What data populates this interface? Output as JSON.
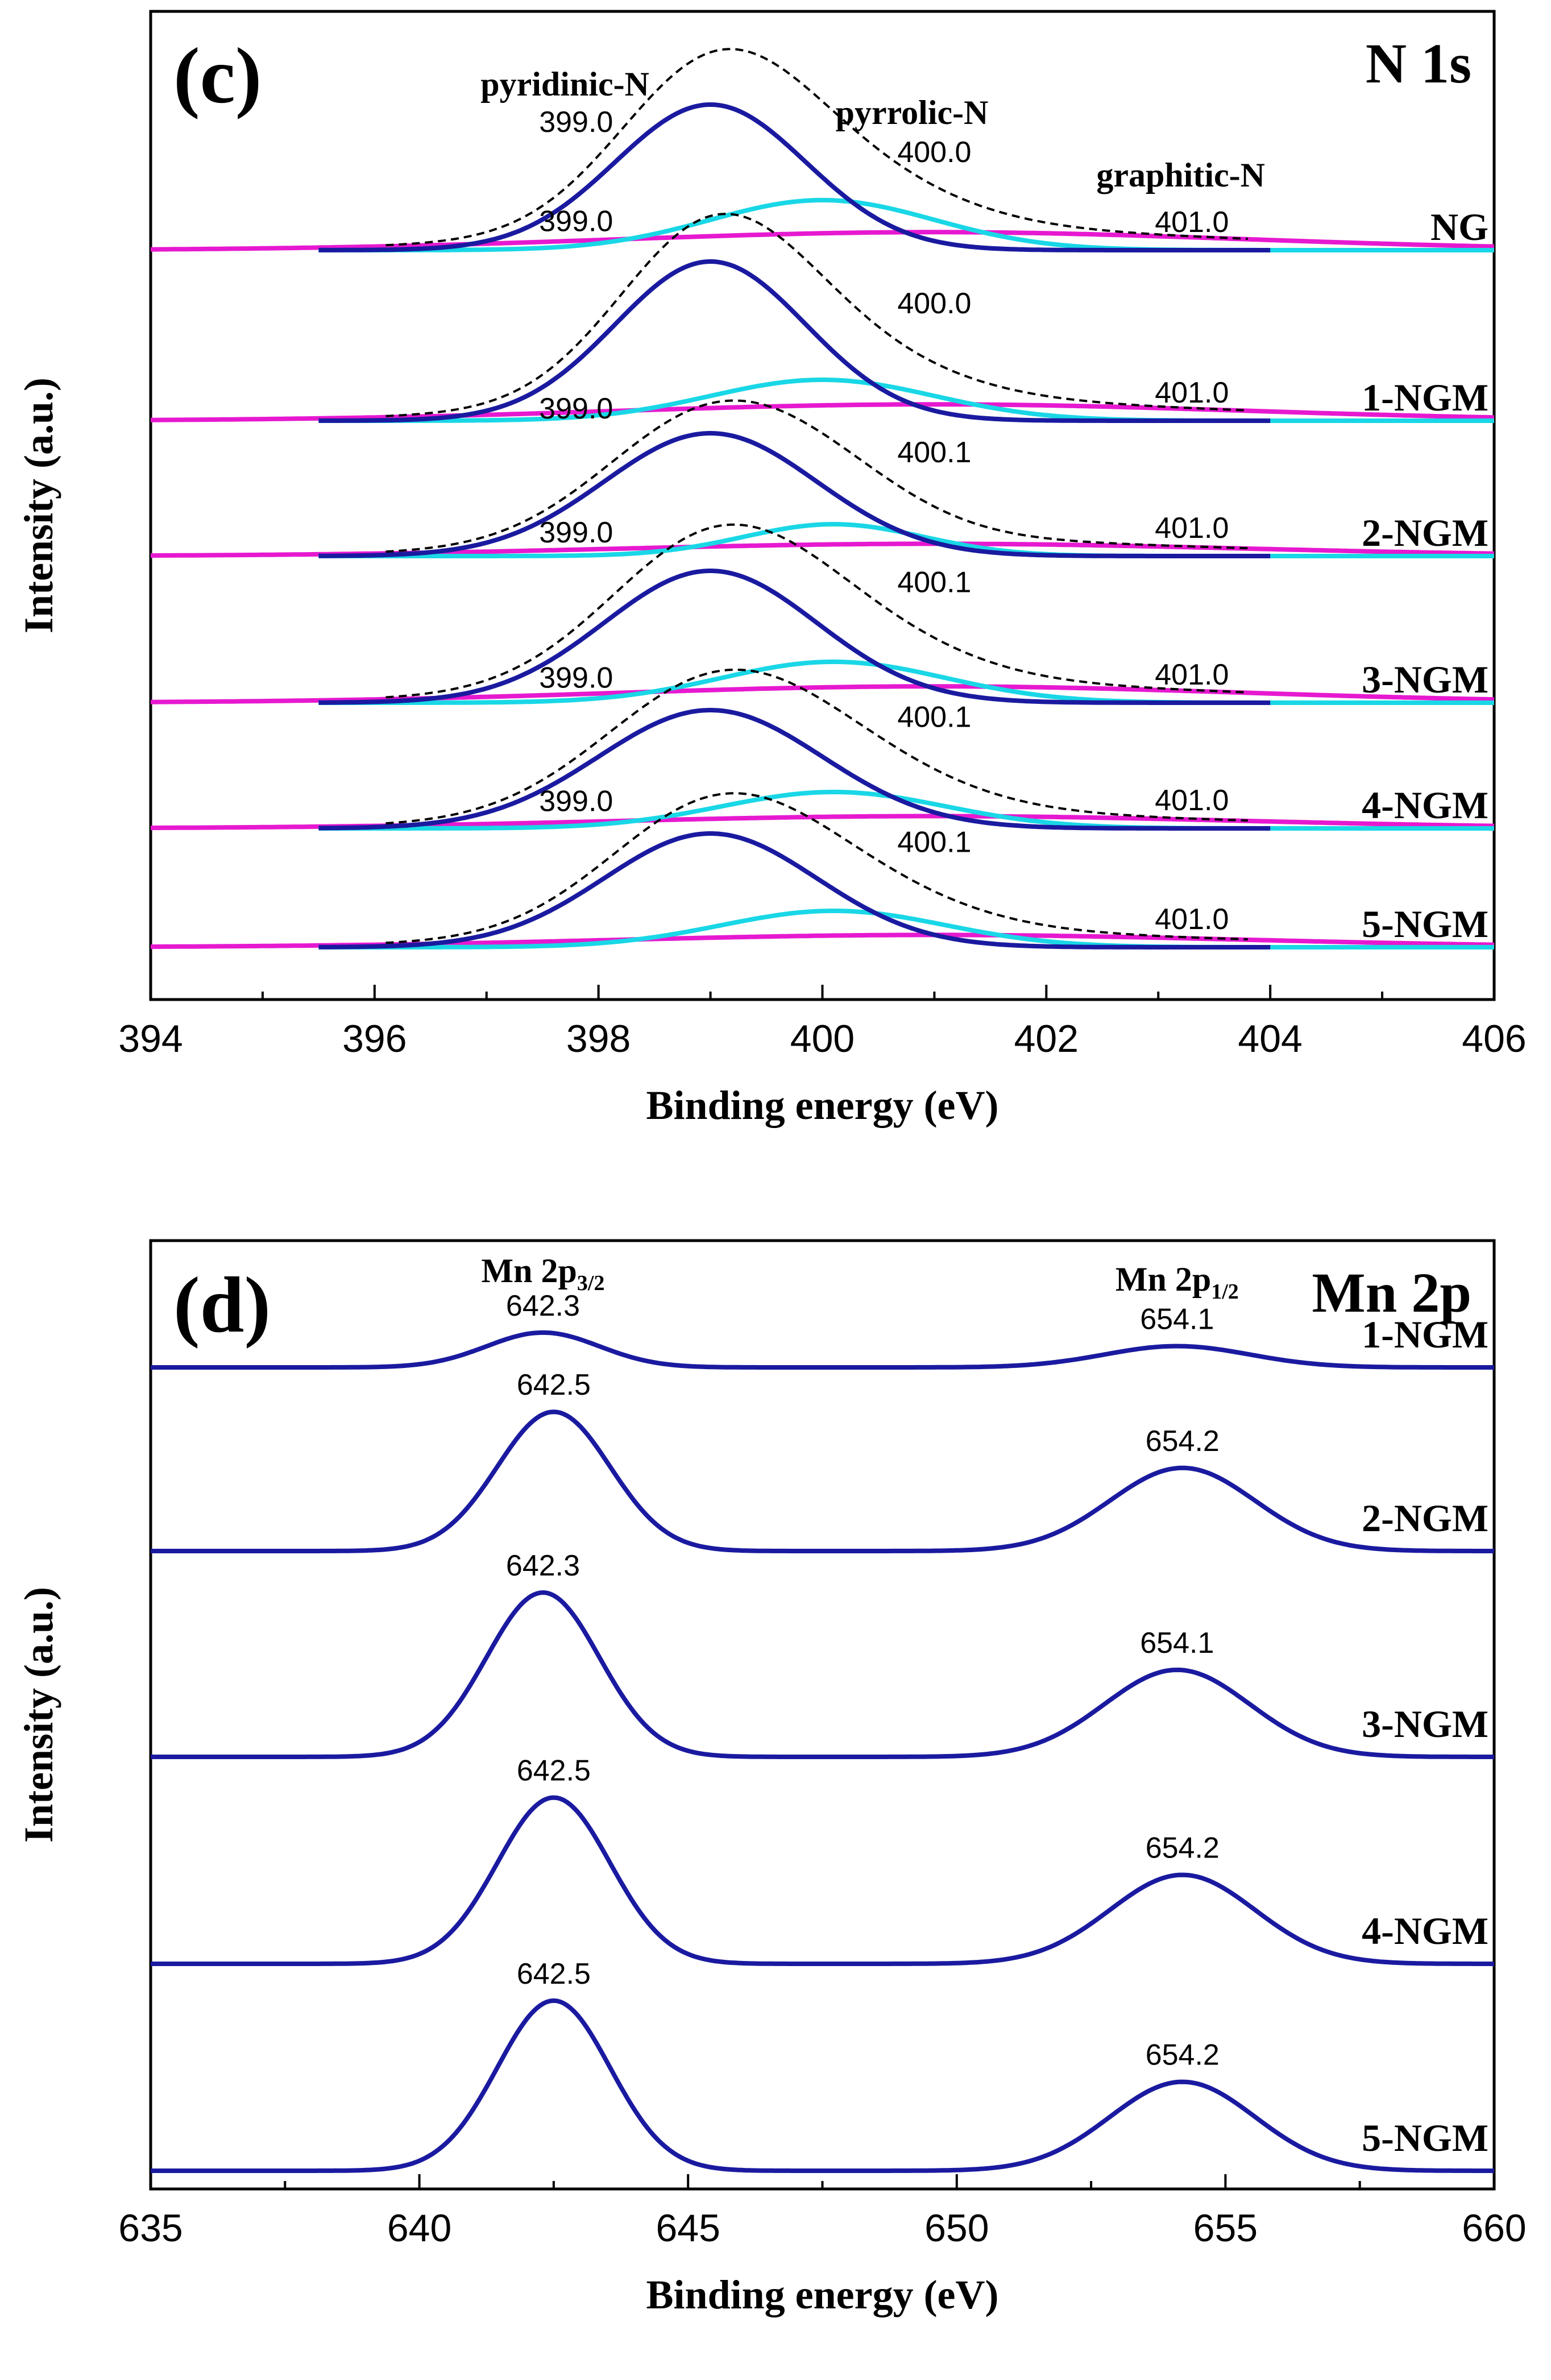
{
  "chart_data": [
    {
      "id": "c",
      "type": "line",
      "panel_label": "(c)",
      "title": "N 1s",
      "xlabel": "Binding energy (eV)",
      "ylabel": "Intensity (a.u.)",
      "xlim": [
        394,
        406
      ],
      "xticks": [
        394,
        396,
        398,
        400,
        402,
        404,
        406
      ],
      "xtick_labels": [
        "394",
        "396",
        "398",
        "400",
        "402",
        "404",
        "406"
      ],
      "components": [
        {
          "name": "pyridinic-N",
          "color": "#1a1aa0",
          "style": "solid"
        },
        {
          "name": "pyrrolic-N",
          "color": "#19d7e6",
          "style": "solid"
        },
        {
          "name": "graphitic-N",
          "color": "#e619d0",
          "style": "solid"
        },
        {
          "name": "envelope",
          "color": "#000000",
          "style": "dashed"
        }
      ],
      "peak_labels": {
        "pyridinic": "pyridinic-N",
        "pyrrolic": "pyrrolic-N",
        "graphitic": "graphitic-N"
      },
      "samples": [
        {
          "name": "NG",
          "offset": 5,
          "pyridinic": {
            "center": 399.0,
            "label": "399.0",
            "height": 1.6,
            "sigma": 0.85
          },
          "pyrrolic": {
            "center": 400.0,
            "label": "400.0",
            "height": 0.55,
            "sigma": 1.0
          },
          "graphitic": {
            "center": 401.0,
            "label": "401.0",
            "height": 0.22,
            "sigma": 2.8
          },
          "baseline_slope": 0.0
        },
        {
          "name": "1-NGM",
          "offset": 4,
          "pyridinic": {
            "center": 399.0,
            "label": "399.0",
            "height": 1.75,
            "sigma": 0.85
          },
          "pyrrolic": {
            "center": 400.0,
            "label": "400.0",
            "height": 0.45,
            "sigma": 1.0
          },
          "graphitic": {
            "center": 401.0,
            "label": "401.0",
            "height": 0.2,
            "sigma": 2.8
          },
          "baseline_slope": 0.0
        },
        {
          "name": "2-NGM",
          "offset": 3,
          "pyridinic": {
            "center": 399.0,
            "label": "399.0",
            "height": 1.35,
            "sigma": 0.95
          },
          "pyrrolic": {
            "center": 400.1,
            "label": "400.1",
            "height": 0.35,
            "sigma": 0.8
          },
          "graphitic": {
            "center": 401.0,
            "label": "401.0",
            "height": 0.15,
            "sigma": 2.8
          },
          "baseline_slope": 0.02
        },
        {
          "name": "3-NGM",
          "offset": 2,
          "pyridinic": {
            "center": 399.0,
            "label": "399.0",
            "height": 1.45,
            "sigma": 0.95
          },
          "pyrrolic": {
            "center": 400.1,
            "label": "400.1",
            "height": 0.45,
            "sigma": 1.0
          },
          "graphitic": {
            "center": 401.0,
            "label": "401.0",
            "height": 0.2,
            "sigma": 2.8
          },
          "baseline_slope": 0.0
        },
        {
          "name": "4-NGM",
          "offset": 1,
          "pyridinic": {
            "center": 399.0,
            "label": "399.0",
            "height": 1.3,
            "sigma": 1.0
          },
          "pyrrolic": {
            "center": 400.1,
            "label": "400.1",
            "height": 0.4,
            "sigma": 1.0
          },
          "graphitic": {
            "center": 401.0,
            "label": "401.0",
            "height": 0.15,
            "sigma": 2.8
          },
          "baseline_slope": 0.0
        },
        {
          "name": "5-NGM",
          "offset": 0,
          "pyridinic": {
            "center": 399.0,
            "label": "399.0",
            "height": 1.25,
            "sigma": 0.95
          },
          "pyrrolic": {
            "center": 400.1,
            "label": "400.1",
            "height": 0.4,
            "sigma": 1.0
          },
          "graphitic": {
            "center": 401.0,
            "label": "401.0",
            "height": 0.15,
            "sigma": 2.8
          },
          "baseline_slope": 0.0
        }
      ]
    },
    {
      "id": "d",
      "type": "line",
      "panel_label": "(d)",
      "title": "Mn 2p",
      "xlabel": "Binding energy (eV)",
      "ylabel": "Intensity (a.u.)",
      "xlim": [
        635,
        660
      ],
      "xticks": [
        635,
        640,
        645,
        650,
        655,
        660
      ],
      "xtick_labels": [
        "635",
        "640",
        "645",
        "650",
        "655",
        "660"
      ],
      "color": "#1a1aa0",
      "peak_names": {
        "p32_main": "Mn 2p",
        "p32_sub": "3/2",
        "p12_main": "Mn 2p",
        "p12_sub": "1/2"
      },
      "samples": [
        {
          "name": "1-NGM",
          "offset": 4,
          "p32": {
            "center": 642.3,
            "label": "642.3",
            "height": 0.18
          },
          "p12": {
            "center": 654.1,
            "label": "654.1",
            "height": 0.11
          }
        },
        {
          "name": "2-NGM",
          "offset": 3,
          "p32": {
            "center": 642.5,
            "label": "642.5",
            "height": 0.72
          },
          "p12": {
            "center": 654.2,
            "label": "654.2",
            "height": 0.43
          }
        },
        {
          "name": "3-NGM",
          "offset": 2,
          "p32": {
            "center": 642.3,
            "label": "642.3",
            "height": 0.85
          },
          "p12": {
            "center": 654.1,
            "label": "654.1",
            "height": 0.45
          }
        },
        {
          "name": "4-NGM",
          "offset": 1,
          "p32": {
            "center": 642.5,
            "label": "642.5",
            "height": 0.86
          },
          "p12": {
            "center": 654.2,
            "label": "654.2",
            "height": 0.46
          }
        },
        {
          "name": "5-NGM",
          "offset": 0,
          "p32": {
            "center": 642.5,
            "label": "642.5",
            "height": 0.88
          },
          "p12": {
            "center": 654.2,
            "label": "654.2",
            "height": 0.46
          }
        }
      ]
    }
  ]
}
